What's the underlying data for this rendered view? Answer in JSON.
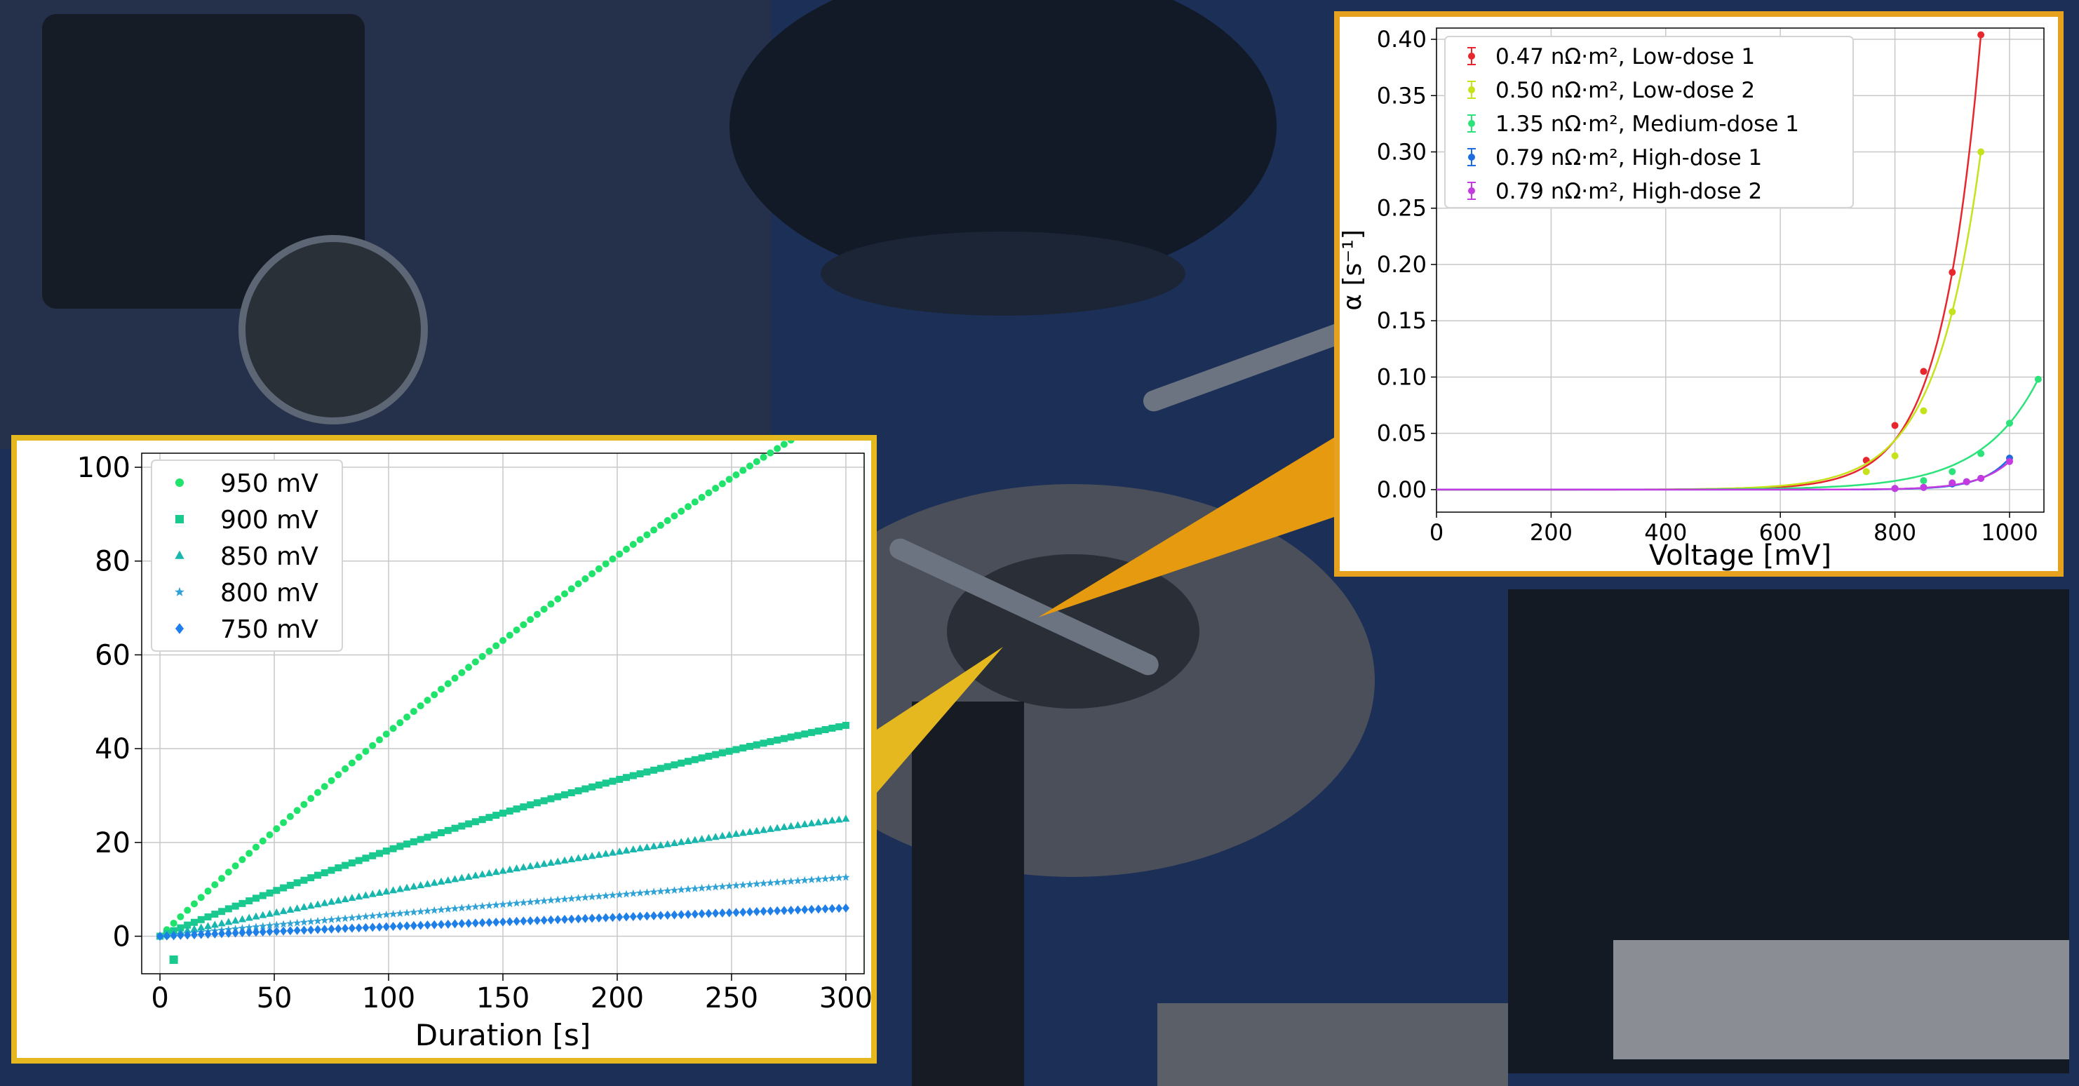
{
  "colors": {
    "left_frame": "#e6b81f",
    "right_frame": "#e6a21f",
    "background_tint": "#1c2f57"
  },
  "chart_data": [
    {
      "type": "scatter",
      "title": "",
      "xlabel": "Duration [s]",
      "ylabel": "",
      "xlim": [
        -8,
        308
      ],
      "ylim": [
        -8,
        103
      ],
      "xticks": [
        0,
        50,
        100,
        150,
        200,
        250,
        300
      ],
      "yticks": [
        0,
        20,
        40,
        60,
        80,
        100
      ],
      "grid": true,
      "legend_position": "top-left",
      "series": [
        {
          "name": "950 mV",
          "marker": "circle",
          "color": "#1fe36a",
          "rate": 0.4645,
          "curvature": 0.000294,
          "outlier": null
        },
        {
          "name": "900 mV",
          "marker": "square",
          "color": "#1ac98f",
          "rate": 0.2,
          "curvature": 0.000167,
          "outlier": [
            6,
            -5
          ]
        },
        {
          "name": "850 mV",
          "marker": "triangle",
          "color": "#17b7ad",
          "rate": 0.1021,
          "curvature": 6.22e-05,
          "outlier": null
        },
        {
          "name": "800 mV",
          "marker": "star",
          "color": "#2fa3d6",
          "rate": 0.0485,
          "curvature": 2.22e-05,
          "outlier": null
        },
        {
          "name": "750 mV",
          "marker": "diamond",
          "color": "#1f7fe8",
          "rate": 0.0207,
          "curvature": 2.2e-06,
          "outlier": null
        }
      ]
    },
    {
      "type": "line",
      "title": "",
      "xlabel": "Voltage [mV]",
      "ylabel": "α [s⁻¹]",
      "xlim": [
        0,
        1060
      ],
      "ylim": [
        -0.02,
        0.41
      ],
      "xticks": [
        0,
        200,
        400,
        600,
        800,
        1000
      ],
      "yticks": [
        "0.00",
        "0.05",
        "0.10",
        "0.15",
        "0.20",
        "0.25",
        "0.30",
        "0.35",
        "0.40"
      ],
      "grid": true,
      "legend_position": "top-left",
      "series": [
        {
          "name": "0.47 nΩ·m², Low-dose 1",
          "color": "#e8262d",
          "x": [
            750,
            800,
            850,
            900,
            950
          ],
          "y": [
            0.026,
            0.057,
            0.105,
            0.193,
            0.404
          ],
          "fit_end": 950
        },
        {
          "name": "0.50 nΩ·m², Low-dose 2",
          "color": "#c6e21b",
          "x": [
            750,
            800,
            850,
            900,
            950
          ],
          "y": [
            0.016,
            0.03,
            0.07,
            0.158,
            0.3
          ],
          "fit_end": 950
        },
        {
          "name": "1.35 nΩ·m², Medium-dose 1",
          "color": "#2be37a",
          "x": [
            850,
            900,
            950,
            1000,
            1050
          ],
          "y": [
            0.008,
            0.016,
            0.032,
            0.059,
            0.098
          ],
          "fit_end": 1050
        },
        {
          "name": "0.79 nΩ·m², High-dose 1",
          "color": "#1f6be0",
          "x": [
            800,
            850,
            900,
            925,
            950,
            1000
          ],
          "y": [
            0.001,
            0.002,
            0.005,
            0.007,
            0.01,
            0.028
          ],
          "fit_end": 1000
        },
        {
          "name": "0.79 nΩ·m², High-dose 2",
          "color": "#c43be0",
          "x": [
            800,
            850,
            900,
            925,
            950,
            1000
          ],
          "y": [
            0.001,
            0.002,
            0.006,
            0.007,
            0.01,
            0.025
          ],
          "fit_end": 1000
        }
      ]
    }
  ]
}
